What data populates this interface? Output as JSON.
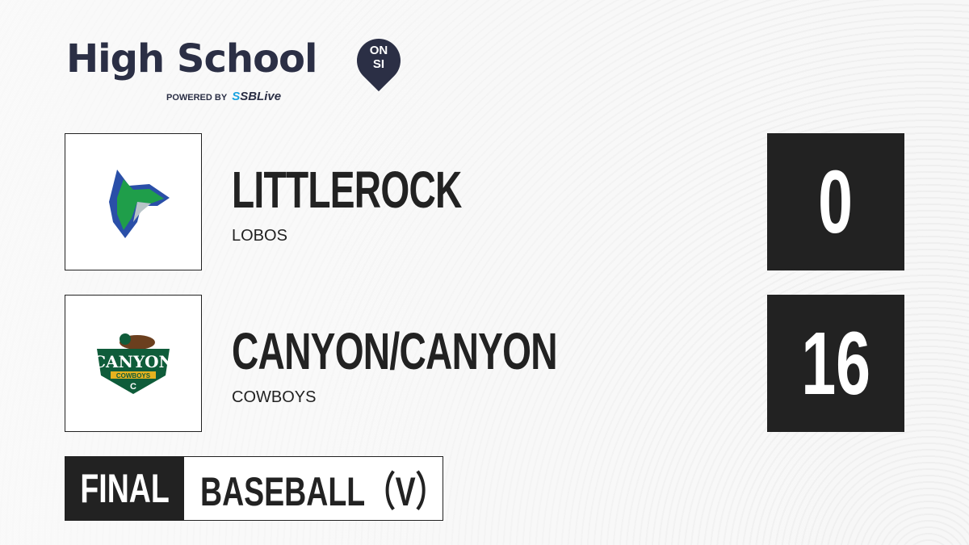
{
  "brand": {
    "title": "High School",
    "badge_top": "ON",
    "badge_bottom": "SI",
    "powered_by": "POWERED BY",
    "partner_s": "S",
    "partner": "SBLive"
  },
  "teams": [
    {
      "name": "LITTLEROCK",
      "mascot": "LOBOS",
      "score": "0",
      "logo_colors": [
        "#1f9e4a",
        "#2a4fa8",
        "#b8c4c8"
      ]
    },
    {
      "name": "CANYON/CANYON",
      "mascot": "COWBOYS",
      "score": "16",
      "logo_text": "CANYON",
      "logo_sub": "COWBOYS",
      "logo_letter": "C",
      "logo_colors": [
        "#0f5c3a",
        "#e6b21f"
      ]
    }
  ],
  "game": {
    "status": "FINAL",
    "sport": "BASEBALL（V）"
  }
}
